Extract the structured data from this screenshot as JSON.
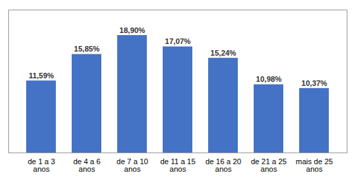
{
  "chart_data": {
    "type": "bar",
    "categories": [
      "de 1 a 3\nanos",
      "de 4 a 6\nanos",
      "de 7 a 10\nanos",
      "de 11 a 15\nanos",
      "de 16 a 20\nanos",
      "de 21 a 25\nanos",
      "mais de 25\nanos"
    ],
    "values": [
      11.59,
      15.85,
      18.9,
      17.07,
      15.24,
      10.98,
      10.37
    ],
    "value_labels": [
      "11,59%",
      "15,85%",
      "18,90%",
      "17,07%",
      "15,24%",
      "10,98%",
      "10,37%"
    ],
    "color": "#4472c4",
    "ylim": [
      0,
      23
    ],
    "data_labels": true,
    "tick_labels": "x"
  }
}
